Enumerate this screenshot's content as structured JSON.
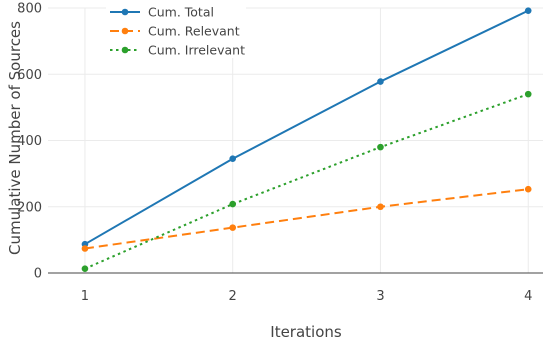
{
  "chart_data": {
    "type": "line",
    "xlabel": "Iterations",
    "ylabel": "Cumulative Number of Sources",
    "x": [
      1,
      2,
      3,
      4
    ],
    "x_ticks": [
      1,
      2,
      3,
      4
    ],
    "y_ticks": [
      0,
      200,
      400,
      600,
      800
    ],
    "xlim": [
      0.75,
      4.1
    ],
    "ylim": [
      0,
      800
    ],
    "grid": true,
    "legend_placement": "top-left",
    "series": [
      {
        "name": "Cum. Total",
        "values": [
          87,
          345,
          578,
          792
        ],
        "color": "#1f77b4",
        "dash": "solid"
      },
      {
        "name": "Cum. Relevant",
        "values": [
          74,
          137,
          200,
          253
        ],
        "color": "#ff7f0e",
        "dash": "dash"
      },
      {
        "name": "Cum. Irrelevant",
        "values": [
          13,
          208,
          380,
          540
        ],
        "color": "#2ca02c",
        "dash": "dot"
      }
    ]
  }
}
